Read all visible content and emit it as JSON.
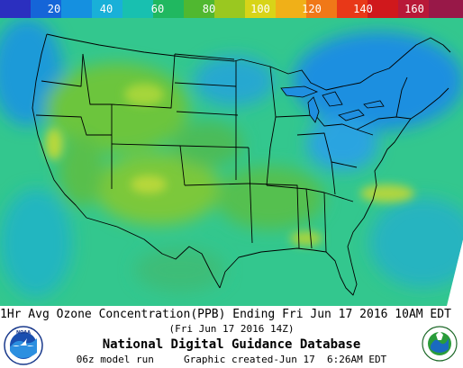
{
  "scale": {
    "ticks": [
      "20",
      "40",
      "60",
      "80",
      "100",
      "120",
      "140",
      "160"
    ],
    "colors": [
      "#2b2fbf",
      "#1565d8",
      "#1590e0",
      "#19b0d8",
      "#18c0b0",
      "#20b860",
      "#50b830",
      "#9ac820",
      "#d8d418",
      "#f0b018",
      "#f07818",
      "#e83818",
      "#d0181c",
      "#b81838",
      "#981848"
    ]
  },
  "map": {
    "region": "Contiguous United States",
    "field_colors": {
      "base": "#33c78e",
      "land_green": "#5cc04a",
      "ocean_teal": "#22b8aa",
      "low_blue": "#1e8fe0",
      "high_yellow": "#b8d83a"
    },
    "border_color": "#000000"
  },
  "footer": {
    "title": "1Hr Avg Ozone Concentration(PPB) Ending Fri Jun 17 2016 10AM EDT",
    "subtime": "(Fri Jun 17 2016 14Z)",
    "database": "National Digital Guidance Database",
    "model_run": "06z model run",
    "created": "Graphic created-Jun 17  6:26AM EDT"
  },
  "logos": {
    "noaa_text": "NOAA",
    "epa_text": "UNITED STATES ENVIRONMENTAL PROTECTION AGENCY"
  }
}
